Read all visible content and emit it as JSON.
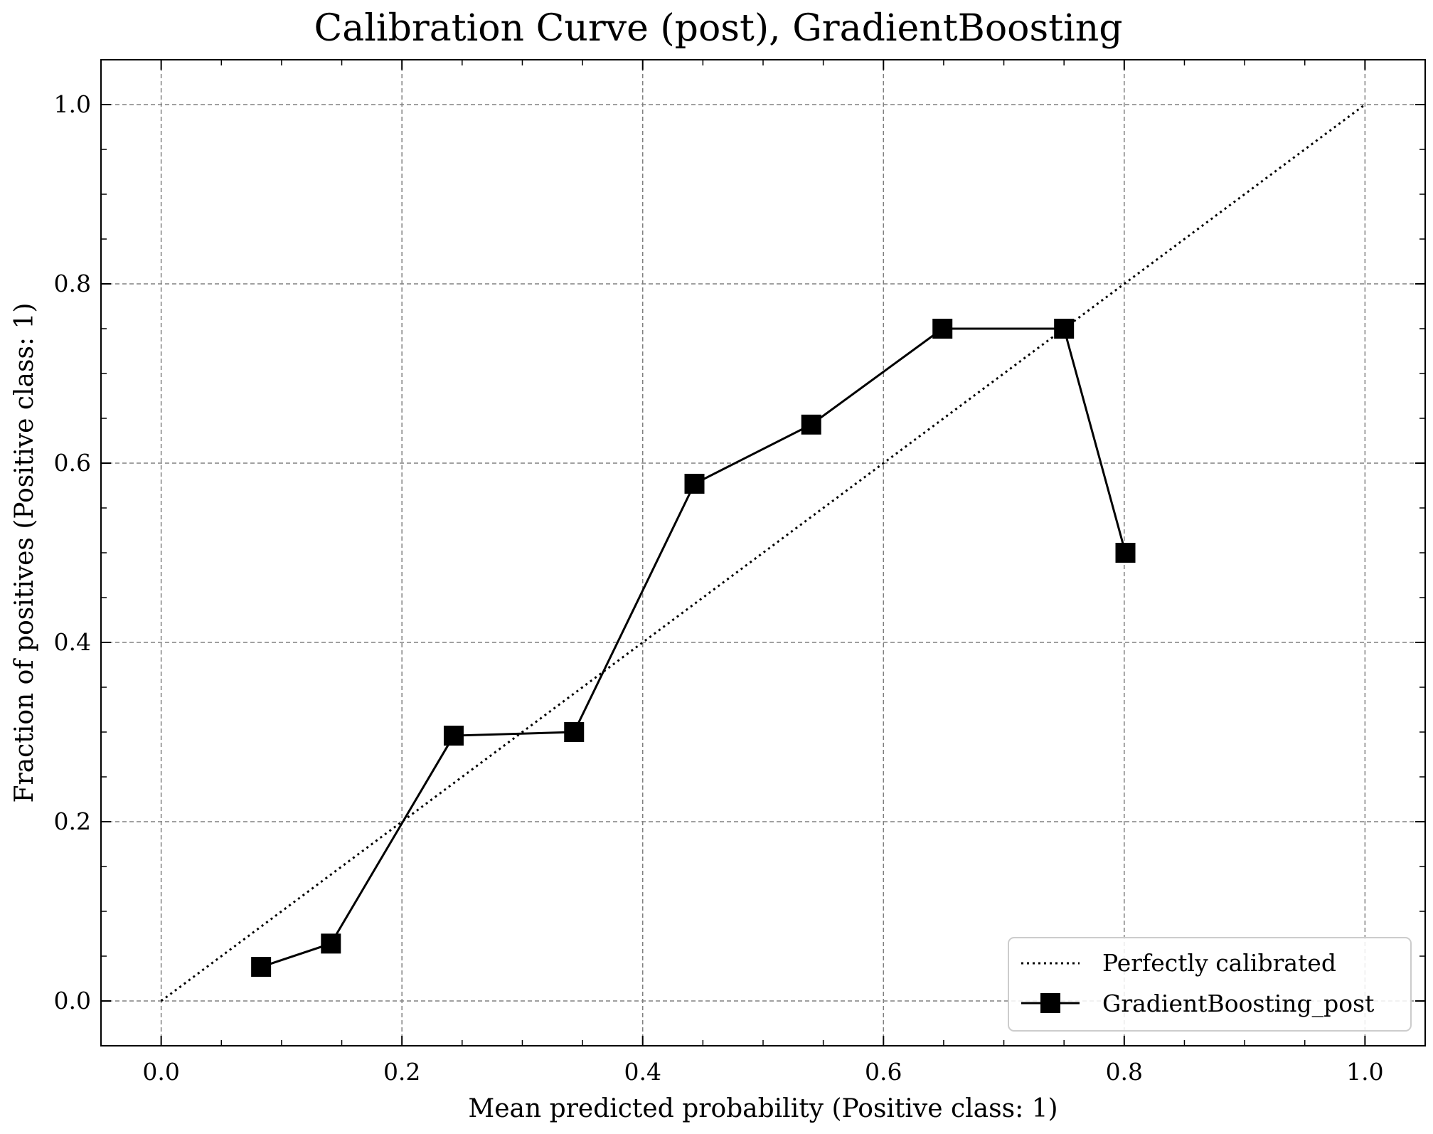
{
  "chart_data": {
    "type": "line",
    "title": "Calibration Curve (post), GradientBoosting",
    "xlabel": "Mean predicted probability (Positive class: 1)",
    "ylabel": "Fraction of positives (Positive class: 1)",
    "xlim": [
      -0.05,
      1.05
    ],
    "ylim": [
      -0.05,
      1.05
    ],
    "xticks": [
      "0.0",
      "0.2",
      "0.4",
      "0.6",
      "0.8",
      "1.0"
    ],
    "yticks": [
      "0.0",
      "0.2",
      "0.4",
      "0.6",
      "0.8",
      "1.0"
    ],
    "grid": true,
    "legend_position": "bottom-right",
    "series": [
      {
        "name": "Perfectly calibrated",
        "style": "dotted",
        "marker": "none",
        "color": "#000000",
        "x": [
          0.0,
          1.0
        ],
        "y": [
          0.0,
          1.0
        ]
      },
      {
        "name": "GradientBoosting_post",
        "style": "solid",
        "marker": "square",
        "color": "#000000",
        "x": [
          0.083,
          0.141,
          0.243,
          0.343,
          0.443,
          0.54,
          0.649,
          0.75,
          0.801
        ],
        "y": [
          0.038,
          0.064,
          0.296,
          0.3,
          0.577,
          0.643,
          0.75,
          0.75,
          0.5
        ]
      }
    ]
  }
}
